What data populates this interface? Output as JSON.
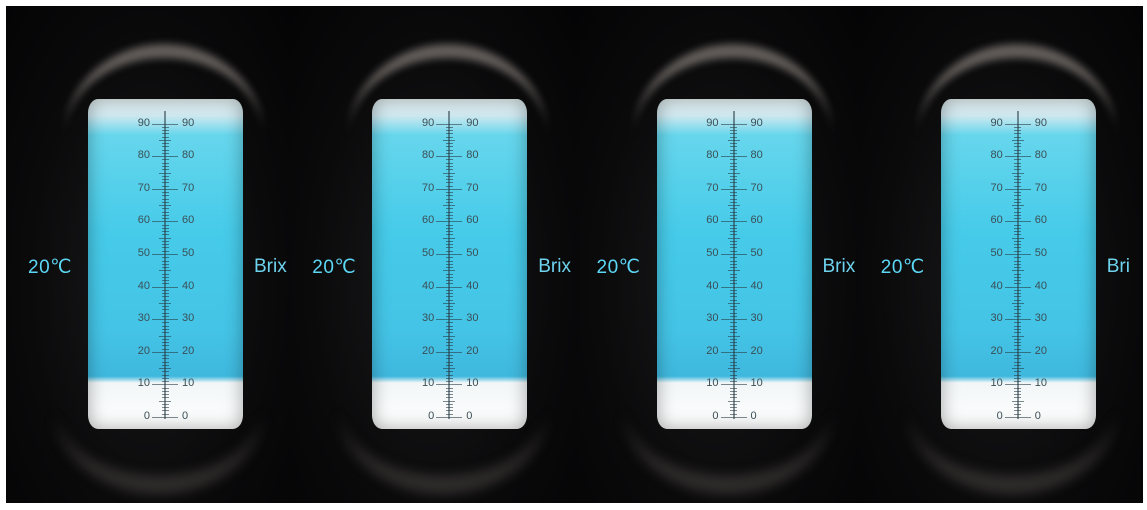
{
  "panels": [
    {
      "temperature": "20℃",
      "unit": "Brix"
    },
    {
      "temperature": "20℃",
      "unit": "Brix"
    },
    {
      "temperature": "20℃",
      "unit": "Brix"
    },
    {
      "temperature": "20℃",
      "unit": "Bri"
    }
  ],
  "scale": {
    "labels": [
      "0",
      "10",
      "20",
      "30",
      "40",
      "50",
      "60",
      "70",
      "80",
      "90"
    ]
  },
  "colors": {
    "background": "#060607",
    "field_blue": "#46cbe9",
    "field_white": "#ffffff",
    "label_cyan": "#5cd7f6"
  }
}
